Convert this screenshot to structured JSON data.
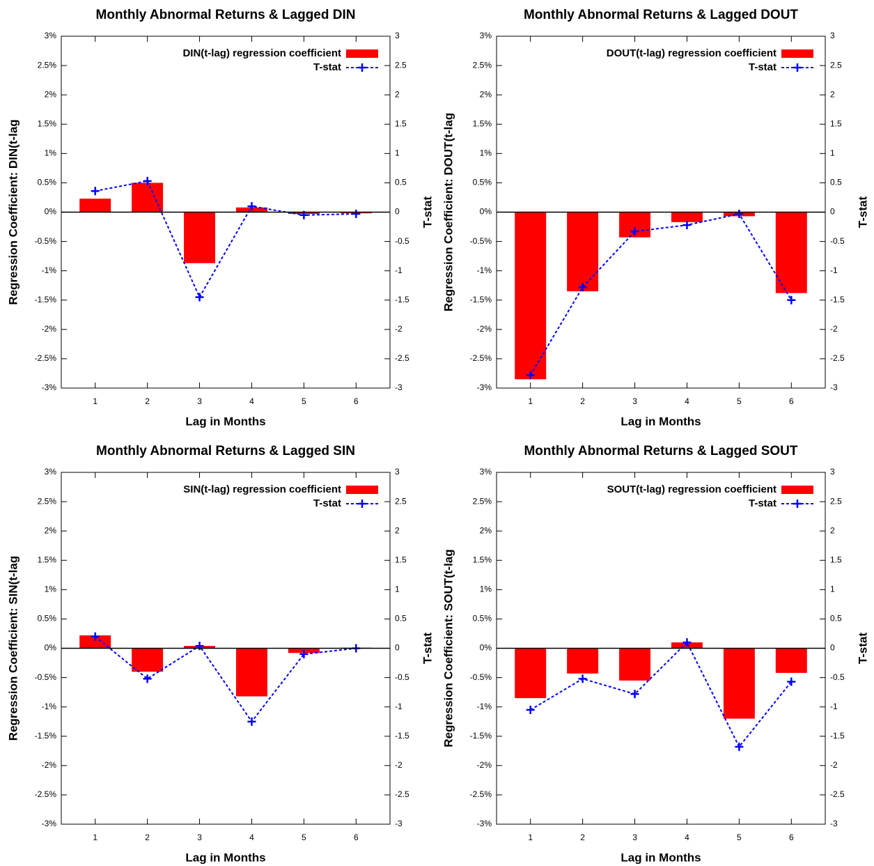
{
  "chart_data": [
    {
      "type": "combo",
      "title": "Monthly Abnormal Returns & Lagged DIN",
      "xlabel": "Lag in Months",
      "ylabel": "Regression Coefficient: DIN(t-lag",
      "y2label": "T-stat",
      "x": [
        1,
        2,
        3,
        4,
        5,
        6
      ],
      "xlim": [
        0.35,
        6.65
      ],
      "xticks": [
        1,
        2,
        3,
        4,
        5,
        6
      ],
      "ylim": [
        -3,
        3
      ],
      "yticks": [
        {
          "value": -3,
          "label": "-3%"
        },
        {
          "value": -2.5,
          "label": "-2.5%"
        },
        {
          "value": -2,
          "label": "-2%"
        },
        {
          "value": -1.5,
          "label": "-1.5%"
        },
        {
          "value": -1,
          "label": "-1%"
        },
        {
          "value": -0.5,
          "label": "-0.5%"
        },
        {
          "value": 0,
          "label": "0%"
        },
        {
          "value": 0.5,
          "label": "0.5%"
        },
        {
          "value": 1,
          "label": "1%"
        },
        {
          "value": 1.5,
          "label": "1.5%"
        },
        {
          "value": 2,
          "label": "2%"
        },
        {
          "value": 2.5,
          "label": "2.5%"
        },
        {
          "value": 3,
          "label": "3%"
        }
      ],
      "y2lim": [
        -3,
        3
      ],
      "y2ticks": [
        -3,
        -2.5,
        -2,
        -1.5,
        -1,
        -0.5,
        0,
        0.5,
        1,
        1.5,
        2,
        2.5,
        3
      ],
      "legend": "top right",
      "series": [
        {
          "name": "DIN(t-lag) regression coefficient",
          "kind": "bar",
          "color": "#ff0000",
          "values": [
            0.23,
            0.5,
            -0.87,
            0.08,
            -0.03,
            -0.02
          ]
        },
        {
          "name": "T-stat",
          "kind": "line",
          "axis": "y2",
          "color": "#0000ff",
          "values": [
            0.36,
            0.53,
            -1.45,
            0.1,
            -0.05,
            -0.03
          ]
        }
      ]
    },
    {
      "type": "combo",
      "title": "Monthly Abnormal Returns & Lagged DOUT",
      "xlabel": "Lag in Months",
      "ylabel": "Regression Coefficient: DOUT(t-lag",
      "y2label": "T-stat",
      "x": [
        1,
        2,
        3,
        4,
        5,
        6
      ],
      "xlim": [
        0.35,
        6.65
      ],
      "xticks": [
        1,
        2,
        3,
        4,
        5,
        6
      ],
      "ylim": [
        -3,
        3
      ],
      "yticks": [
        {
          "value": -3,
          "label": "-3%"
        },
        {
          "value": -2.5,
          "label": "-2.5%"
        },
        {
          "value": -2,
          "label": "-2%"
        },
        {
          "value": -1.5,
          "label": "-1.5%"
        },
        {
          "value": -1,
          "label": "-1%"
        },
        {
          "value": -0.5,
          "label": "-0.5%"
        },
        {
          "value": 0,
          "label": "0%"
        },
        {
          "value": 0.5,
          "label": "0.5%"
        },
        {
          "value": 1,
          "label": "1%"
        },
        {
          "value": 1.5,
          "label": "1.5%"
        },
        {
          "value": 2,
          "label": "2%"
        },
        {
          "value": 2.5,
          "label": "2.5%"
        },
        {
          "value": 3,
          "label": "3%"
        }
      ],
      "y2lim": [
        -3,
        3
      ],
      "y2ticks": [
        -3,
        -2.5,
        -2,
        -1.5,
        -1,
        -0.5,
        0,
        0.5,
        1,
        1.5,
        2,
        2.5,
        3
      ],
      "legend": "top right",
      "series": [
        {
          "name": "DOUT(t-lag) regression coefficient",
          "kind": "bar",
          "color": "#ff0000",
          "values": [
            -2.85,
            -1.35,
            -0.43,
            -0.17,
            -0.07,
            -1.38
          ]
        },
        {
          "name": "T-stat",
          "kind": "line",
          "axis": "y2",
          "color": "#0000ff",
          "values": [
            -2.78,
            -1.28,
            -0.33,
            -0.22,
            -0.03,
            -1.5
          ]
        }
      ]
    },
    {
      "type": "combo",
      "title": "Monthly Abnormal Returns & Lagged SIN",
      "xlabel": "Lag in Months",
      "ylabel": "Regression Coefficient: SIN(t-lag",
      "y2label": "T-stat",
      "x": [
        1,
        2,
        3,
        4,
        5,
        6
      ],
      "xlim": [
        0.35,
        6.65
      ],
      "xticks": [
        1,
        2,
        3,
        4,
        5,
        6
      ],
      "ylim": [
        -3,
        3
      ],
      "yticks": [
        {
          "value": -3,
          "label": "-3%"
        },
        {
          "value": -2.5,
          "label": "-2.5%"
        },
        {
          "value": -2,
          "label": "-2%"
        },
        {
          "value": -1.5,
          "label": "-1.5%"
        },
        {
          "value": -1,
          "label": "-1%"
        },
        {
          "value": -0.5,
          "label": "-0.5%"
        },
        {
          "value": 0,
          "label": "0%"
        },
        {
          "value": 0.5,
          "label": "0.5%"
        },
        {
          "value": 1,
          "label": "1%"
        },
        {
          "value": 1.5,
          "label": "1.5%"
        },
        {
          "value": 2,
          "label": "2%"
        },
        {
          "value": 2.5,
          "label": "2.5%"
        },
        {
          "value": 3,
          "label": "3%"
        }
      ],
      "y2lim": [
        -3,
        3
      ],
      "y2ticks": [
        -3,
        -2.5,
        -2,
        -1.5,
        -1,
        -0.5,
        0,
        0.5,
        1,
        1.5,
        2,
        2.5,
        3
      ],
      "legend": "top right",
      "series": [
        {
          "name": "SIN(t-lag) regression coefficient",
          "kind": "bar",
          "color": "#ff0000",
          "values": [
            0.22,
            -0.4,
            0.04,
            -0.82,
            -0.08,
            0.01
          ]
        },
        {
          "name": "T-stat",
          "kind": "line",
          "axis": "y2",
          "color": "#0000ff",
          "values": [
            0.2,
            -0.52,
            0.04,
            -1.25,
            -0.1,
            0
          ]
        }
      ]
    },
    {
      "type": "combo",
      "title": "Monthly Abnormal Returns & Lagged SOUT",
      "xlabel": "Lag in Months",
      "ylabel": "Regression Coefficient: SOUT(t-lag",
      "y2label": "T-stat",
      "x": [
        1,
        2,
        3,
        4,
        5,
        6
      ],
      "xlim": [
        0.35,
        6.65
      ],
      "xticks": [
        1,
        2,
        3,
        4,
        5,
        6
      ],
      "ylim": [
        -3,
        3
      ],
      "yticks": [
        {
          "value": -3,
          "label": "-3%"
        },
        {
          "value": -2.5,
          "label": "-2.5%"
        },
        {
          "value": -2,
          "label": "-2%"
        },
        {
          "value": -1.5,
          "label": "-1.5%"
        },
        {
          "value": -1,
          "label": "-1%"
        },
        {
          "value": -0.5,
          "label": "-0.5%"
        },
        {
          "value": 0,
          "label": "0%"
        },
        {
          "value": 0.5,
          "label": "0.5%"
        },
        {
          "value": 1,
          "label": "1%"
        },
        {
          "value": 1.5,
          "label": "1.5%"
        },
        {
          "value": 2,
          "label": "2%"
        },
        {
          "value": 2.5,
          "label": "2.5%"
        },
        {
          "value": 3,
          "label": "3%"
        }
      ],
      "y2lim": [
        -3,
        3
      ],
      "y2ticks": [
        -3,
        -2.5,
        -2,
        -1.5,
        -1,
        -0.5,
        0,
        0.5,
        1,
        1.5,
        2,
        2.5,
        3
      ],
      "legend": "top right",
      "series": [
        {
          "name": "SOUT(t-lag) regression coefficient",
          "kind": "bar",
          "color": "#ff0000",
          "values": [
            -0.85,
            -0.43,
            -0.55,
            0.1,
            -1.2,
            -0.42
          ]
        },
        {
          "name": "T-stat",
          "kind": "line",
          "axis": "y2",
          "color": "#0000ff",
          "values": [
            -1.05,
            -0.52,
            -0.78,
            0.1,
            -1.68,
            -0.57
          ]
        }
      ]
    }
  ]
}
